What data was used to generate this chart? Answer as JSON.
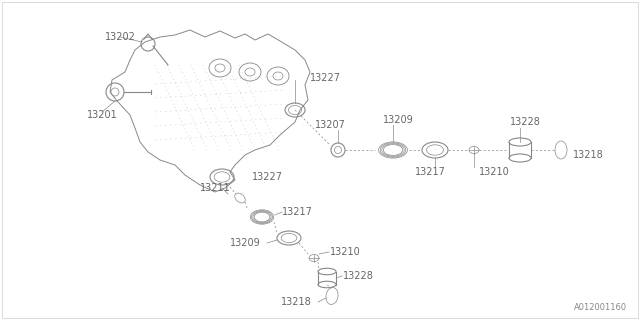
{
  "bg_color": "#ffffff",
  "line_color": "#888888",
  "fig_width": 6.4,
  "fig_height": 3.2,
  "dpi": 100,
  "watermark": "A012001160",
  "label_color": "#666666",
  "lw_main": 0.8,
  "lw_thin": 0.5
}
